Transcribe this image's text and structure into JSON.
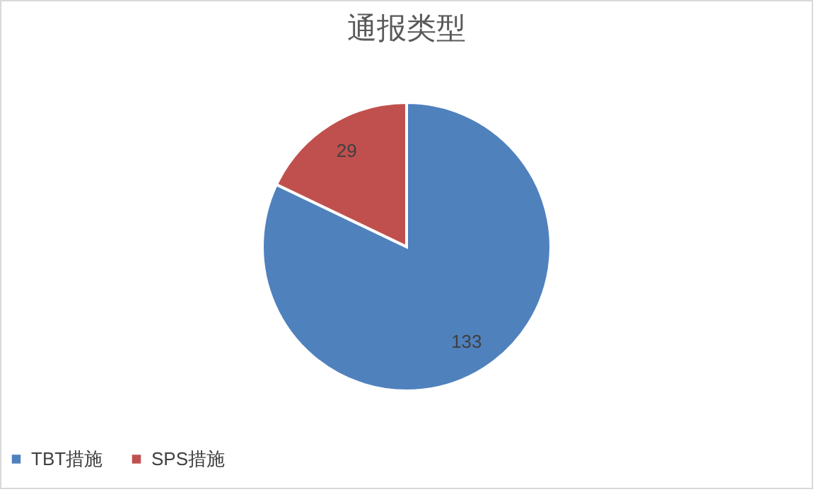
{
  "chart_data": {
    "type": "pie",
    "title": "通报类型",
    "categories": [
      "TBT措施",
      "SPS措施"
    ],
    "values": [
      133,
      29
    ],
    "colors": [
      "#4f81bd",
      "#c0504d"
    ],
    "data_labels": true,
    "legend": "bottom"
  }
}
